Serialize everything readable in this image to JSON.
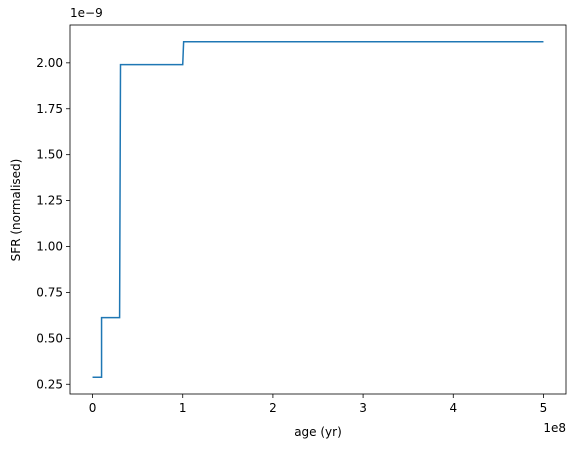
{
  "chart_data": {
    "type": "line",
    "xlabel": "age (yr)",
    "ylabel": "SFR (normalised)",
    "x_offset_label": "1e8",
    "y_offset_label": "1e−9",
    "x": [
      0,
      0.1,
      0.1,
      0.3,
      0.31,
      1.0,
      1.01,
      5.0
    ],
    "series": [
      {
        "name": "SFR",
        "color": "#1f77b4",
        "values": [
          0.288,
          0.288,
          0.613,
          0.613,
          1.99,
          1.99,
          2.115,
          2.115
        ]
      }
    ],
    "xlim": [
      -0.25,
      5.25
    ],
    "xticks": [
      0,
      1,
      2,
      3,
      4,
      5
    ],
    "ylim": [
      0.197,
      2.206
    ],
    "yticks": [
      0.25,
      {
        "value": 0.5,
        "label": "0.50"
      },
      0.75,
      {
        "value": 1,
        "label": "1.00"
      },
      1.25,
      {
        "value": 1.5,
        "label": "1.50"
      },
      1.75,
      {
        "value": 2,
        "label": "2.00"
      }
    ]
  }
}
